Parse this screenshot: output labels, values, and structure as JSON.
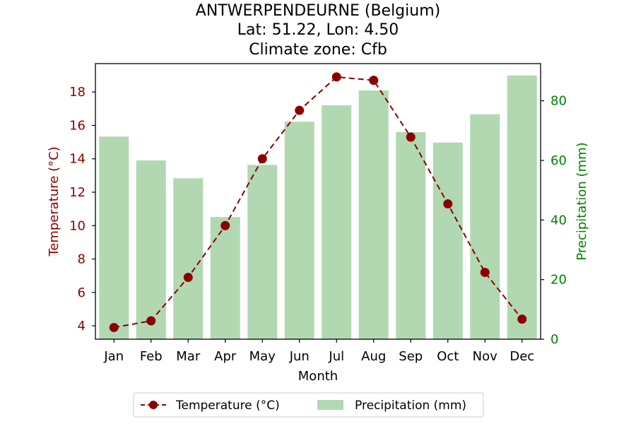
{
  "chart_data": {
    "type": "bar+line",
    "title_lines": [
      "ANTWERPENDEURNE (Belgium)",
      "Lat: 51.22, Lon: 4.50",
      "Climate zone: Cfb"
    ],
    "categories": [
      "Jan",
      "Feb",
      "Mar",
      "Apr",
      "May",
      "Jun",
      "Jul",
      "Aug",
      "Sep",
      "Oct",
      "Nov",
      "Dec"
    ],
    "xlabel": "Month",
    "y_left": {
      "label": "Temperature (°C)",
      "range": [
        3.2,
        19.7
      ],
      "ticks": [
        "4",
        "6",
        "8",
        "10",
        "12",
        "14",
        "16",
        "18"
      ],
      "color": "#8b0000"
    },
    "y_right": {
      "label": "Precipitation (mm)",
      "range": [
        0,
        92.5
      ],
      "ticks": [
        "0",
        "20",
        "40",
        "60",
        "80"
      ],
      "color": "#008000"
    },
    "series": [
      {
        "name": "Temperature (°C)",
        "type": "line",
        "axis": "left",
        "color": "#8b0000",
        "style": "dashed",
        "values": [
          3.9,
          4.3,
          6.9,
          10.0,
          14.0,
          16.9,
          18.9,
          18.7,
          15.3,
          11.3,
          7.2,
          4.4
        ]
      },
      {
        "name": "Precipitation (mm)",
        "type": "bar",
        "axis": "right",
        "color": "#b2d8b2",
        "values": [
          68,
          60,
          54,
          41,
          58.5,
          73,
          78.5,
          83.5,
          69.5,
          66,
          75.5,
          88.5
        ]
      }
    ],
    "legend_position": "bottom-center",
    "grid": false
  }
}
